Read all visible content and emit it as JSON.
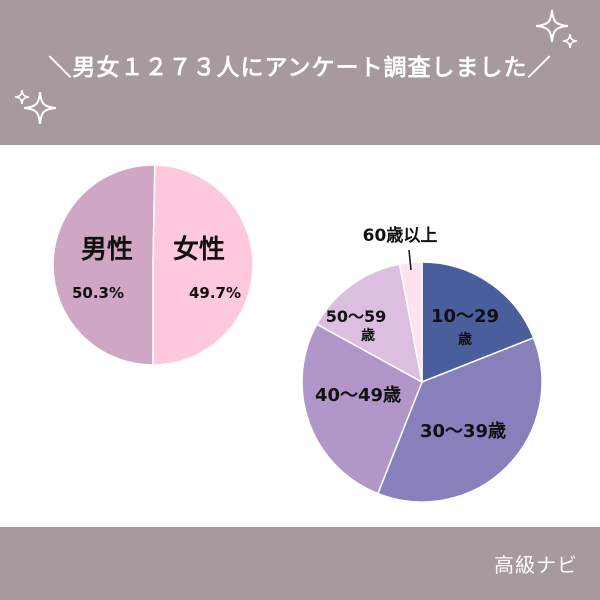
{
  "header": {
    "title": "＼男女１２７３人にアンケート調査しました／"
  },
  "footer": {
    "brand": "高級ナビ"
  },
  "colors": {
    "banner": "#a69a9b",
    "male": "#cfa6c4",
    "female": "#fec9dc",
    "age_10_29": "#4a5e9c",
    "age_30_39": "#8880bb",
    "age_40_49": "#b096c9",
    "age_50_59": "#dcbfe0",
    "age_60_plus": "#fde2ef"
  },
  "icons": [
    "sparkle-icon",
    "sparkle-icon"
  ],
  "chart_data": [
    {
      "type": "pie",
      "categories": [
        "男性",
        "女性"
      ],
      "values": [
        50.3,
        49.7
      ],
      "value_labels": [
        "50.3%",
        "49.7%"
      ],
      "colors": [
        "#cfa6c4",
        "#fec9dc"
      ]
    },
    {
      "type": "pie",
      "categories": [
        "10〜29歳",
        "30〜39歳",
        "40〜49歳",
        "50〜59歳",
        "60歳以上"
      ],
      "values": [
        19,
        37,
        27,
        14,
        3
      ],
      "colors": [
        "#4a5e9c",
        "#8880bb",
        "#b096c9",
        "#dcbfe0",
        "#fde2ef"
      ]
    }
  ]
}
